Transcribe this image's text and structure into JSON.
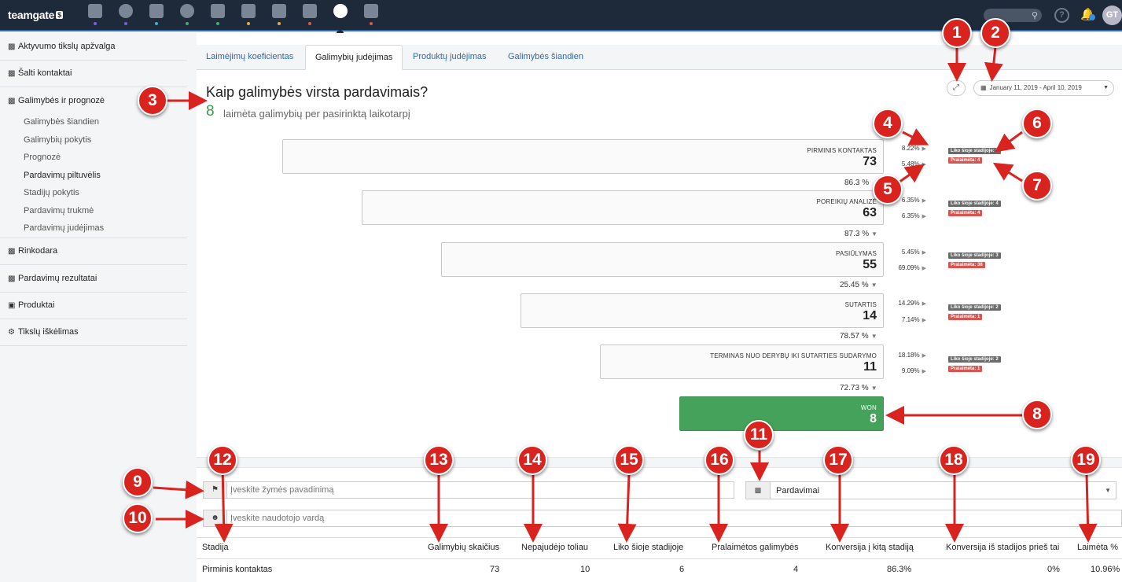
{
  "app": {
    "logo": "teamgate"
  },
  "topbar": {
    "help": "?",
    "avatar": "GT"
  },
  "topnav": {
    "icons": [
      "dashboard-icon",
      "target-icon",
      "building-icon",
      "globe-icon",
      "briefcase-icon",
      "calendar-icon",
      "lock-icon",
      "document-icon",
      "reports-icon",
      "mail-icon"
    ],
    "dot_colors": [
      "#7b5ce0",
      "#7b5ce0",
      "#3fb0c9",
      "#3ab26e",
      "#3ab26e",
      "#e0b13a",
      "#e0b13a",
      "#e05a3a",
      "#1e2a3a",
      "#e05a3a"
    ]
  },
  "sidebar": {
    "items": [
      {
        "label": "Aktyvumo tikslų apžvalga"
      },
      {
        "label": "Šalti kontaktai"
      },
      {
        "label": "Galimybės ir prognozė"
      },
      {
        "label": "Rinkodara"
      },
      {
        "label": "Pardavimų rezultatai"
      },
      {
        "label": "Produktai"
      },
      {
        "label": "Tikslų iškėlimas"
      }
    ],
    "subitems": [
      {
        "label": "Galimybės šiandien"
      },
      {
        "label": "Galimybių pokytis"
      },
      {
        "label": "Prognozė"
      },
      {
        "label": "Pardavimų piltuvėlis"
      },
      {
        "label": "Stadijų pokytis"
      },
      {
        "label": "Pardavimų trukmė"
      },
      {
        "label": "Pardavimų judėjimas"
      }
    ]
  },
  "tabs": [
    {
      "label": "Laimėjimų koeficientas"
    },
    {
      "label": "Galimybių judėjimas"
    },
    {
      "label": "Produktų judėjimas"
    },
    {
      "label": "Galimybės šiandien"
    }
  ],
  "main": {
    "title": "Kaip galimybės virsta pardavimais?",
    "won_count": "8",
    "won_text": "laimėta galimybių per pasirinktą laikotarpį",
    "date_range": "January 11, 2019 - April 10, 2019"
  },
  "funnel": {
    "stages": [
      {
        "name": "PIRMINIS KONTAKTAS",
        "value": "73",
        "pct_up": "8.22%",
        "pct_down": "5.48%",
        "left": "Liko šioje stadijoje: 6",
        "lost": "Pralaimėta: 4",
        "conv": "86.3 %"
      },
      {
        "name": "POREIKIŲ ANALIZĖ",
        "value": "63",
        "pct_up": "6.35%",
        "pct_down": "6.35%",
        "left": "Liko šioje stadijoje: 4",
        "lost": "Pralaimėta: 4",
        "conv": "87.3 %"
      },
      {
        "name": "PASIŪLYMAS",
        "value": "55",
        "pct_up": "5.45%",
        "pct_down": "69.09%",
        "left": "Liko šioje stadijoje: 3",
        "lost": "Pralaimėta: 38",
        "conv": "25.45 %"
      },
      {
        "name": "SUTARTIS",
        "value": "14",
        "pct_up": "14.29%",
        "pct_down": "7.14%",
        "left": "Liko šioje stadijoje: 2",
        "lost": "Pralaimėta: 1",
        "conv": "78.57 %"
      },
      {
        "name": "TERMINAS NUO DERYBŲ IKI SUTARTIES SUDARYMO",
        "value": "11",
        "pct_up": "18.18%",
        "pct_down": "9.09%",
        "left": "Liko šioje stadijoje: 2",
        "lost": "Pralaimėta: 1",
        "conv": "72.73 %"
      }
    ],
    "won": {
      "name": "WON",
      "value": "8"
    }
  },
  "filters": {
    "tag_placeholder": "Įveskite žymės pavadinimą",
    "user_placeholder": "Įveskite naudotojo vardą",
    "metric": "Pardavimai"
  },
  "table": {
    "headers": [
      "Stadija",
      "Galimybių skaičius",
      "Nepajudėjo toliau",
      "Liko šioje stadijoje",
      "Pralaimėtos galimybės",
      "Konversija į kitą stadiją",
      "Konversija iš stadijos prieš tai",
      "Laimėta %"
    ],
    "rows": [
      [
        "Pirminis kontaktas",
        "73",
        "10",
        "6",
        "4",
        "86.3%",
        "0%",
        "10.96%"
      ]
    ]
  },
  "markers": [
    "1",
    "2",
    "3",
    "4",
    "5",
    "6",
    "7",
    "8",
    "9",
    "10",
    "11",
    "12",
    "13",
    "14",
    "15",
    "16",
    "17",
    "18",
    "19"
  ],
  "colors": {
    "topbar": "#1e2a3a",
    "accent": "#2e6ab1",
    "won": "#45a25a",
    "lost": "#d9534f",
    "marker": "#d9231f"
  }
}
